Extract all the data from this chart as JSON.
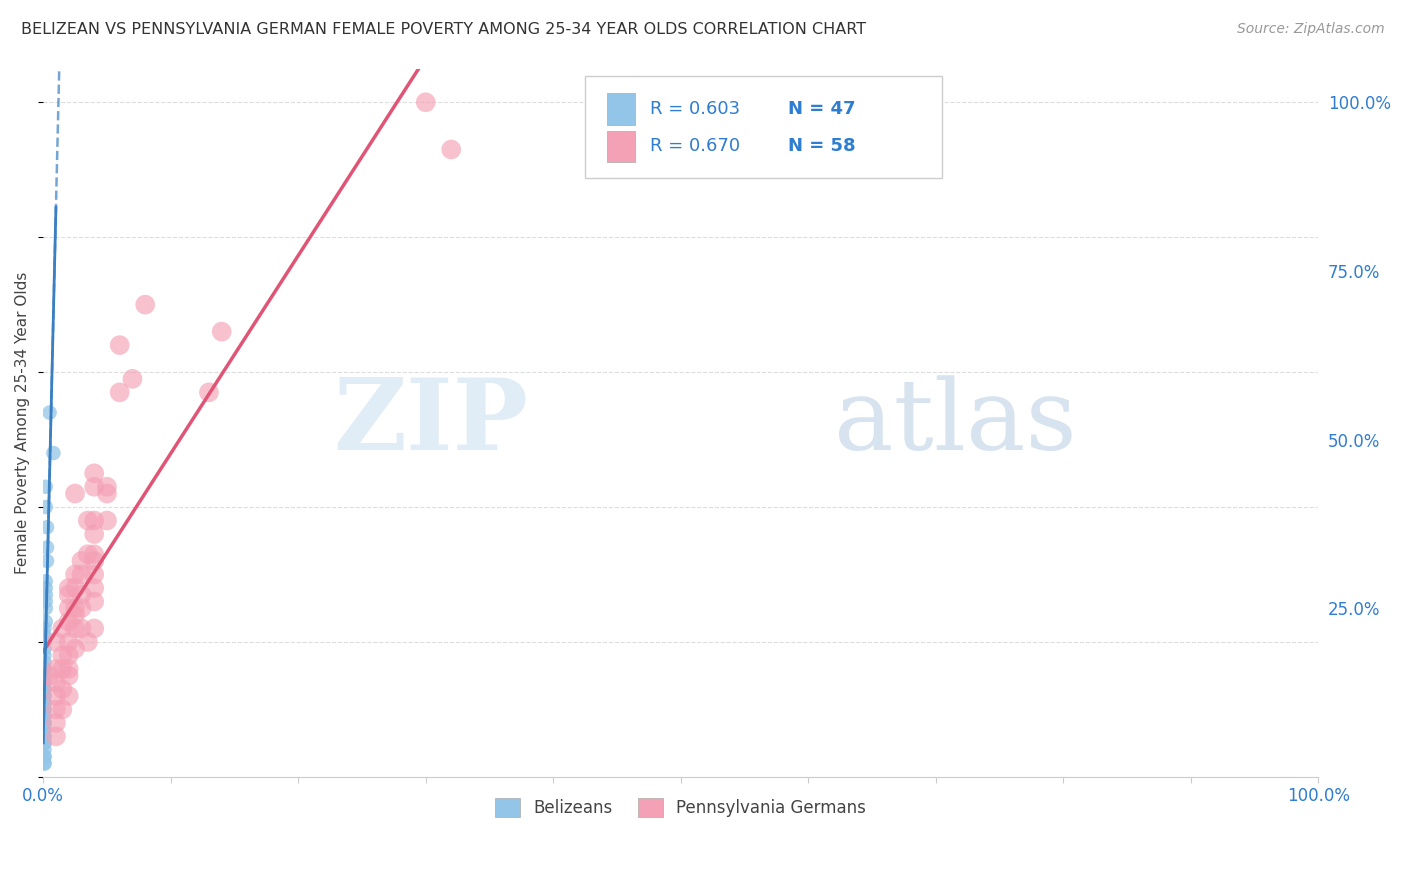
{
  "title": "BELIZEAN VS PENNSYLVANIA GERMAN FEMALE POVERTY AMONG 25-34 YEAR OLDS CORRELATION CHART",
  "source": "Source: ZipAtlas.com",
  "ylabel": "Female Poverty Among 25-34 Year Olds",
  "watermark_zip": "ZIP",
  "watermark_atlas": "atlas",
  "legend_label1": "Belizeans",
  "legend_label2": "Pennsylvania Germans",
  "R1": 0.603,
  "N1": 47,
  "R2": 0.67,
  "N2": 58,
  "color_blue": "#92c5e8",
  "color_pink": "#f4a0b5",
  "color_blue_line": "#3a7fc1",
  "color_pink_line": "#e05575",
  "color_title": "#333333",
  "color_source": "#999999",
  "color_axis_label": "#2e7dd1",
  "color_grid": "#dddddd",
  "color_watermark_zip": "#c8ddf0",
  "color_watermark_atlas": "#b8cce4",
  "belizean_x": [
    0.005,
    0.008,
    0.002,
    0.002,
    0.003,
    0.003,
    0.003,
    0.002,
    0.002,
    0.002,
    0.002,
    0.002,
    0.002,
    0.001,
    0.001,
    0.001,
    0.001,
    0.001,
    0.001,
    0.001,
    0.001,
    0.001,
    0.001,
    0.001,
    0.001,
    0.001,
    0.001,
    0.001,
    0.001,
    0.001,
    0.001,
    0.001,
    0.001,
    0.001,
    0.001,
    0.001,
    0.001,
    0.001,
    0.001,
    0.001,
    0.001,
    0.001,
    0.001,
    0.001,
    0.001,
    0.001,
    0.001
  ],
  "belizean_y": [
    0.54,
    0.48,
    0.43,
    0.4,
    0.37,
    0.34,
    0.32,
    0.29,
    0.28,
    0.27,
    0.26,
    0.25,
    0.23,
    0.22,
    0.21,
    0.2,
    0.19,
    0.18,
    0.17,
    0.16,
    0.16,
    0.15,
    0.14,
    0.13,
    0.13,
    0.12,
    0.12,
    0.11,
    0.11,
    0.1,
    0.1,
    0.09,
    0.09,
    0.08,
    0.08,
    0.08,
    0.07,
    0.07,
    0.06,
    0.06,
    0.05,
    0.05,
    0.04,
    0.03,
    0.03,
    0.02,
    0.02
  ],
  "pagerman_x": [
    0.3,
    0.32,
    0.14,
    0.13,
    0.08,
    0.07,
    0.06,
    0.06,
    0.05,
    0.05,
    0.05,
    0.04,
    0.04,
    0.04,
    0.04,
    0.04,
    0.04,
    0.04,
    0.04,
    0.04,
    0.04,
    0.035,
    0.035,
    0.035,
    0.03,
    0.03,
    0.03,
    0.03,
    0.03,
    0.025,
    0.025,
    0.025,
    0.025,
    0.025,
    0.025,
    0.025,
    0.02,
    0.02,
    0.02,
    0.02,
    0.02,
    0.02,
    0.02,
    0.02,
    0.02,
    0.015,
    0.015,
    0.015,
    0.015,
    0.015,
    0.01,
    0.01,
    0.01,
    0.01,
    0.01,
    0.01,
    0.01,
    0.005
  ],
  "pagerman_y": [
    1.0,
    0.93,
    0.66,
    0.57,
    0.7,
    0.59,
    0.64,
    0.57,
    0.43,
    0.42,
    0.38,
    0.45,
    0.43,
    0.38,
    0.36,
    0.33,
    0.32,
    0.3,
    0.28,
    0.26,
    0.22,
    0.38,
    0.33,
    0.2,
    0.32,
    0.3,
    0.27,
    0.25,
    0.22,
    0.42,
    0.3,
    0.28,
    0.25,
    0.24,
    0.22,
    0.19,
    0.28,
    0.27,
    0.25,
    0.23,
    0.2,
    0.18,
    0.16,
    0.15,
    0.12,
    0.22,
    0.18,
    0.16,
    0.13,
    0.1,
    0.2,
    0.16,
    0.14,
    0.12,
    0.1,
    0.08,
    0.06,
    0.15
  ],
  "xlim": [
    0.0,
    1.0
  ],
  "ylim": [
    0.0,
    1.05
  ],
  "xticks": [
    0.0,
    0.1,
    0.2,
    0.3,
    0.4,
    0.5,
    0.6,
    0.7,
    0.8,
    0.9,
    1.0
  ],
  "yticks": [
    0.25,
    0.5,
    0.75,
    1.0
  ],
  "ytick_labels": [
    "25.0%",
    "50.0%",
    "75.0%",
    "100.0%"
  ],
  "xtick_show": [
    "0.0%",
    "100.0%"
  ]
}
